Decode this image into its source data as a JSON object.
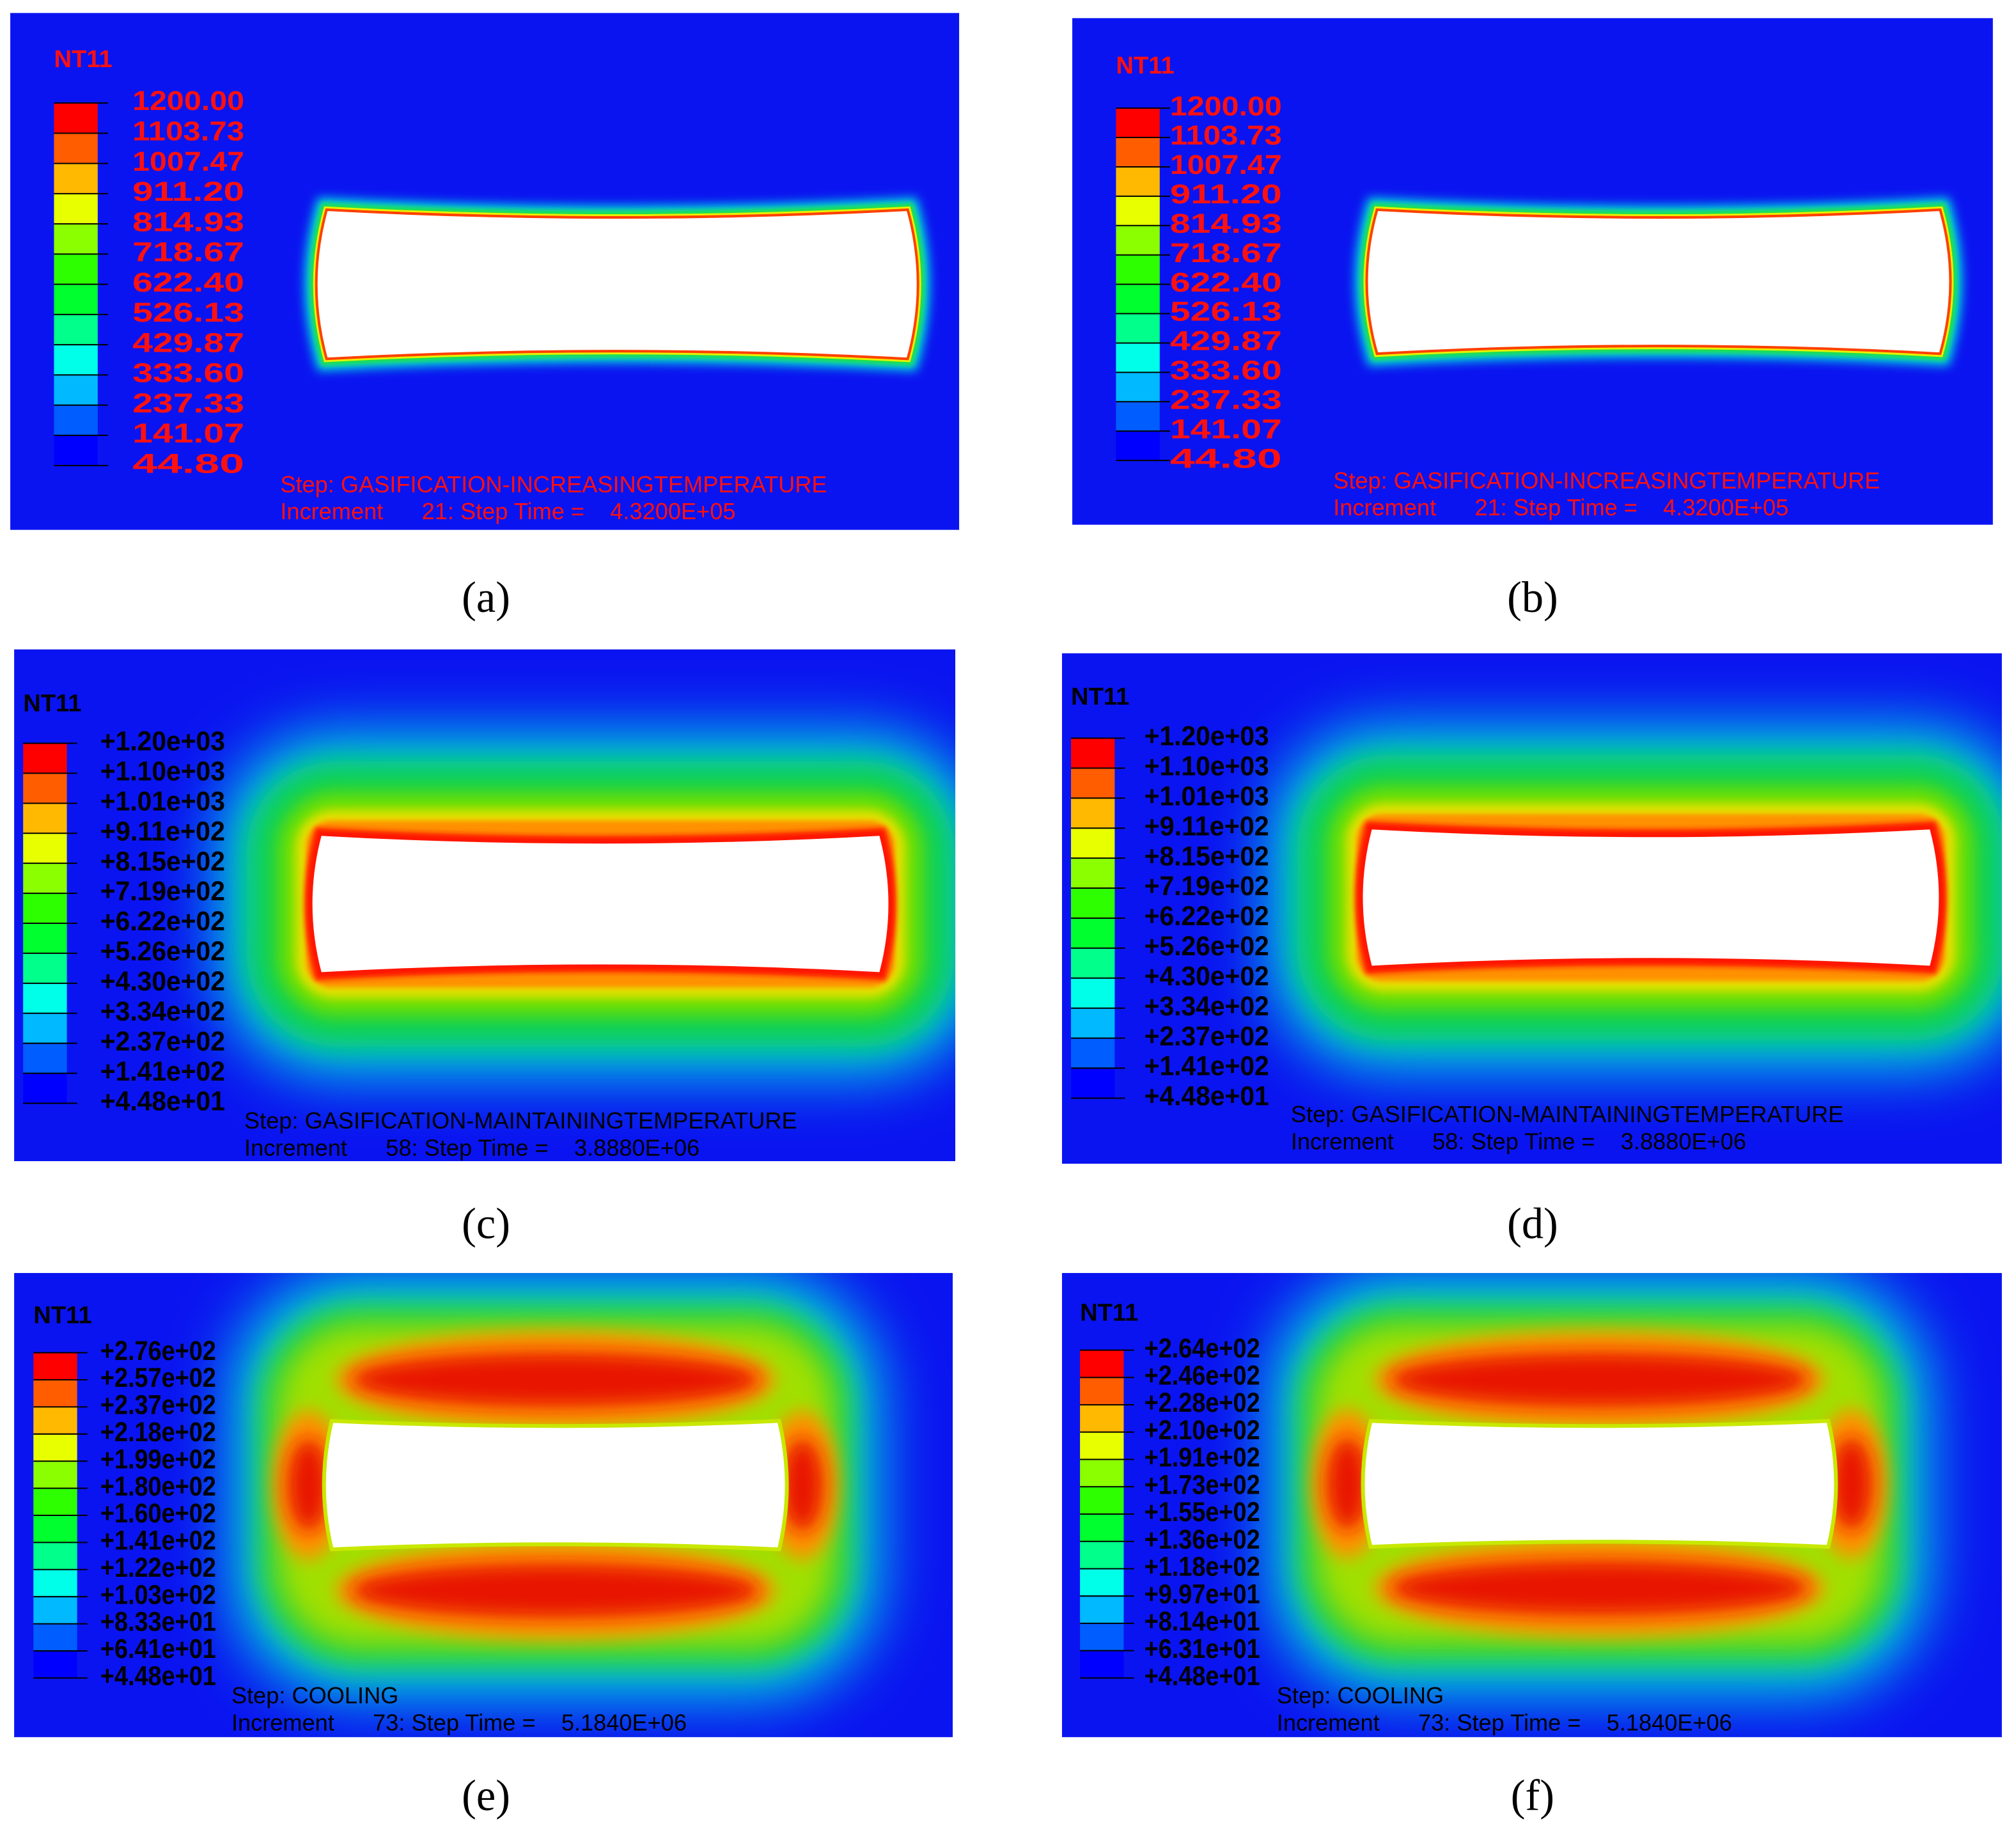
{
  "panels": [
    {
      "caption": "(a)",
      "variable": "NT11",
      "legend_labels": [
        "1200.00",
        "1103.73",
        "1007.47",
        "911.20",
        "814.93",
        "718.67",
        "622.40",
        "526.13",
        "429.87",
        "333.60",
        "237.33",
        "141.07",
        "44.80"
      ],
      "step": "Step: GASIFICATION-INCREASINGTEMPERATURE",
      "increment": "Increment      21: Step Time =    4.3200E+05"
    },
    {
      "caption": "(b)",
      "variable": "NT11",
      "legend_labels": [
        "1200.00",
        "1103.73",
        "1007.47",
        "911.20",
        "814.93",
        "718.67",
        "622.40",
        "526.13",
        "429.87",
        "333.60",
        "237.33",
        "141.07",
        "44.80"
      ],
      "step": "Step: GASIFICATION-INCREASINGTEMPERATURE",
      "increment": "Increment      21: Step Time =    4.3200E+05"
    },
    {
      "caption": "(c)",
      "variable": "NT11",
      "legend_labels": [
        "+1.20e+03",
        "+1.10e+03",
        "+1.01e+03",
        "+9.11e+02",
        "+8.15e+02",
        "+7.19e+02",
        "+6.22e+02",
        "+5.26e+02",
        "+4.30e+02",
        "+3.34e+02",
        "+2.37e+02",
        "+1.41e+02",
        "+4.48e+01"
      ],
      "step": "Step: GASIFICATION-MAINTAININGTEMPERATURE",
      "increment": "Increment      58: Step Time =    3.8880E+06"
    },
    {
      "caption": "(d)",
      "variable": "NT11",
      "legend_labels": [
        "+1.20e+03",
        "+1.10e+03",
        "+1.01e+03",
        "+9.11e+02",
        "+8.15e+02",
        "+7.19e+02",
        "+6.22e+02",
        "+5.26e+02",
        "+4.30e+02",
        "+3.34e+02",
        "+2.37e+02",
        "+1.41e+02",
        "+4.48e+01"
      ],
      "step": "Step: GASIFICATION-MAINTAININGTEMPERATURE",
      "increment": "Increment      58: Step Time =    3.8880E+06"
    },
    {
      "caption": "(e)",
      "variable": "NT11",
      "legend_labels": [
        "+2.76e+02",
        "+2.57e+02",
        "+2.37e+02",
        "+2.18e+02",
        "+1.99e+02",
        "+1.80e+02",
        "+1.60e+02",
        "+1.41e+02",
        "+1.22e+02",
        "+1.03e+02",
        "+8.33e+01",
        "+6.41e+01",
        "+4.48e+01"
      ],
      "step": "Step: COOLING",
      "increment": "Increment      73: Step Time =    5.1840E+06"
    },
    {
      "caption": "(f)",
      "variable": "NT11",
      "legend_labels": [
        "+2.64e+02",
        "+2.46e+02",
        "+2.28e+02",
        "+2.10e+02",
        "+1.91e+02",
        "+1.73e+02",
        "+1.55e+02",
        "+1.36e+02",
        "+1.18e+02",
        "+9.97e+01",
        "+8.14e+01",
        "+6.31e+01",
        "+4.48e+01"
      ],
      "step": "Step: COOLING",
      "increment": "Increment      73: Step Time =    5.1840E+06"
    }
  ]
}
